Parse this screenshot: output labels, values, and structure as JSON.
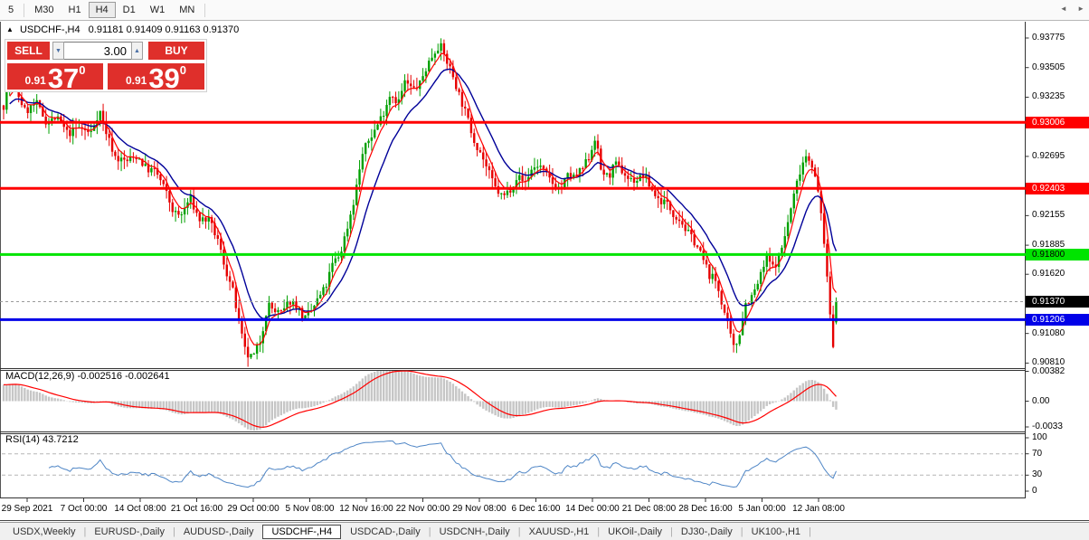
{
  "toolbar": {
    "items": [
      "5",
      "M30",
      "H1",
      "H4",
      "D1",
      "W1",
      "MN"
    ],
    "active": "H4"
  },
  "chart": {
    "title": {
      "marker": "▲",
      "symbol": "USDCHF-,H4",
      "ohlc": "0.91181 0.91409 0.91163 0.91370"
    },
    "trade": {
      "sell_label": "SELL",
      "buy_label": "BUY",
      "volume": "3.00",
      "volume_down_icon": "▼",
      "volume_up_icon": "▲",
      "sell_price": {
        "prefix": "0.91",
        "big": "37",
        "sup": "0"
      },
      "buy_price": {
        "prefix": "0.91",
        "big": "39",
        "sup": "0"
      }
    }
  },
  "price_scale": {
    "ticks": [
      0.93775,
      0.93505,
      0.93235,
      0.92965,
      0.92695,
      0.92155,
      0.91885,
      0.9162,
      0.9108,
      0.9081
    ]
  },
  "indicators": {
    "macd": {
      "header": "MACD(12,26,9) -0.002516 -0.002641",
      "scale": [
        {
          "v": 0.00382,
          "t": "0.00382"
        },
        {
          "v": 0,
          "t": "0.00"
        },
        {
          "v": -0.0033,
          "t": "-0.0033"
        }
      ]
    },
    "rsi": {
      "header": "RSI(14) 43.7212",
      "scale": [
        100,
        70,
        30,
        0
      ],
      "levels": [
        70,
        30
      ]
    }
  },
  "time_axis": {
    "labels": [
      "29 Sep 2021",
      "7 Oct 00:00",
      "14 Oct 08:00",
      "21 Oct 16:00",
      "29 Oct 00:00",
      "5 Nov 08:00",
      "12 Nov 16:00",
      "22 Nov 00:00",
      "29 Nov 08:00",
      "6 Dec 16:00",
      "14 Dec 00:00",
      "21 Dec 08:00",
      "28 Dec 16:00",
      "5 Jan 00:00",
      "12 Jan 08:00"
    ]
  },
  "tabs": {
    "items": [
      "USDX,Weekly",
      "EURUSD-,Daily",
      "AUDUSD-,Daily",
      "USDCHF-,H4",
      "USDCAD-,Daily",
      "USDCNH-,Daily",
      "XAUUSD-,H1",
      "UKOil-,Daily",
      "DJ30-,Daily",
      "UK100-,H1"
    ],
    "active_index": 3,
    "left_arrow": "◄",
    "right_arrow": "►"
  },
  "chart_data": {
    "type": "candlestick+indicators",
    "symbol": "USDCHF",
    "period": "H4",
    "last_ohlc": {
      "open": 0.91181,
      "high": 0.91409,
      "low": 0.91163,
      "close": 0.9137
    },
    "levels": [
      {
        "name": "resistance-upper",
        "price": 0.93006,
        "label": "0.93006",
        "line_color": "#ff0000",
        "chip_bg": "#ff0000",
        "chip_fg": "#ffffff",
        "width": 3
      },
      {
        "name": "resistance-lower",
        "price": 0.92403,
        "label": "0.92403",
        "line_color": "#ff0000",
        "chip_bg": "#ff0000",
        "chip_fg": "#ffffff",
        "width": 3
      },
      {
        "name": "pivot-green",
        "price": 0.918,
        "label": "0.91800",
        "line_color": "#00e400",
        "chip_bg": "#00e400",
        "chip_fg": "#000000",
        "width": 3
      },
      {
        "name": "current-price",
        "price": 0.9137,
        "label": "0.91370",
        "line_color": "#9a9a9a",
        "chip_bg": "#000000",
        "chip_fg": "#ffffff",
        "width": 1,
        "dashed": true
      },
      {
        "name": "support-blue",
        "price": 0.91206,
        "label": "0.91206",
        "line_color": "#0000e8",
        "chip_bg": "#0000e8",
        "chip_fg": "#ffffff",
        "width": 3
      }
    ],
    "colors": {
      "candle_up": "#00a000",
      "candle_down": "#e60000",
      "ma_fast": "#ff0000",
      "ma_slow": "#000099",
      "macd_hist": "#c6c6c6",
      "macd_signal": "#ff0000",
      "rsi_line": "#4f86c6",
      "rsi_levels": "#b5b5b5"
    },
    "price_path_anchors": [
      [
        4,
        0.9316
      ],
      [
        10,
        0.9338
      ],
      [
        18,
        0.933
      ],
      [
        28,
        0.931
      ],
      [
        40,
        0.9318
      ],
      [
        52,
        0.93
      ],
      [
        62,
        0.9305
      ],
      [
        75,
        0.929
      ],
      [
        88,
        0.9296
      ],
      [
        100,
        0.929
      ],
      [
        110,
        0.9312
      ],
      [
        118,
        0.929
      ],
      [
        128,
        0.9268
      ],
      [
        140,
        0.9265
      ],
      [
        152,
        0.927
      ],
      [
        162,
        0.9258
      ],
      [
        172,
        0.9256
      ],
      [
        182,
        0.924
      ],
      [
        192,
        0.9218
      ],
      [
        200,
        0.9215
      ],
      [
        210,
        0.9232
      ],
      [
        220,
        0.9212
      ],
      [
        230,
        0.9212
      ],
      [
        240,
        0.9195
      ],
      [
        250,
        0.9165
      ],
      [
        258,
        0.9145
      ],
      [
        266,
        0.911
      ],
      [
        272,
        0.9088
      ],
      [
        280,
        0.9086
      ],
      [
        288,
        0.9102
      ],
      [
        296,
        0.9135
      ],
      [
        304,
        0.9128
      ],
      [
        312,
        0.9126
      ],
      [
        320,
        0.9138
      ],
      [
        328,
        0.9134
      ],
      [
        336,
        0.912
      ],
      [
        344,
        0.9128
      ],
      [
        352,
        0.914
      ],
      [
        360,
        0.915
      ],
      [
        368,
        0.9172
      ],
      [
        376,
        0.918
      ],
      [
        384,
        0.9205
      ],
      [
        392,
        0.9232
      ],
      [
        400,
        0.927
      ],
      [
        408,
        0.9285
      ],
      [
        416,
        0.9296
      ],
      [
        424,
        0.931
      ],
      [
        432,
        0.9328
      ],
      [
        440,
        0.9318
      ],
      [
        448,
        0.9338
      ],
      [
        456,
        0.933
      ],
      [
        464,
        0.9335
      ],
      [
        472,
        0.9352
      ],
      [
        480,
        0.9365
      ],
      [
        486,
        0.9372
      ],
      [
        492,
        0.936
      ],
      [
        500,
        0.9345
      ],
      [
        508,
        0.9325
      ],
      [
        516,
        0.9306
      ],
      [
        524,
        0.9285
      ],
      [
        532,
        0.9272
      ],
      [
        540,
        0.9255
      ],
      [
        548,
        0.924
      ],
      [
        556,
        0.9232
      ],
      [
        564,
        0.924
      ],
      [
        572,
        0.9252
      ],
      [
        580,
        0.9245
      ],
      [
        588,
        0.9258
      ],
      [
        596,
        0.9262
      ],
      [
        604,
        0.9252
      ],
      [
        612,
        0.9244
      ],
      [
        620,
        0.924
      ],
      [
        628,
        0.9252
      ],
      [
        636,
        0.925
      ],
      [
        644,
        0.9258
      ],
      [
        652,
        0.927
      ],
      [
        658,
        0.9288
      ],
      [
        664,
        0.9258
      ],
      [
        672,
        0.925
      ],
      [
        680,
        0.9262
      ],
      [
        688,
        0.9256
      ],
      [
        696,
        0.9248
      ],
      [
        704,
        0.9248
      ],
      [
        712,
        0.9252
      ],
      [
        720,
        0.924
      ],
      [
        728,
        0.923
      ],
      [
        736,
        0.9228
      ],
      [
        744,
        0.9218
      ],
      [
        752,
        0.9212
      ],
      [
        760,
        0.92
      ],
      [
        768,
        0.9192
      ],
      [
        776,
        0.9178
      ],
      [
        784,
        0.9162
      ],
      [
        792,
        0.9155
      ],
      [
        800,
        0.913
      ],
      [
        806,
        0.911
      ],
      [
        812,
        0.9092
      ],
      [
        818,
        0.911
      ],
      [
        824,
        0.9135
      ],
      [
        832,
        0.9142
      ],
      [
        840,
        0.9158
      ],
      [
        848,
        0.9178
      ],
      [
        854,
        0.9168
      ],
      [
        862,
        0.9178
      ],
      [
        870,
        0.9205
      ],
      [
        878,
        0.9235
      ],
      [
        886,
        0.9262
      ],
      [
        892,
        0.9272
      ],
      [
        898,
        0.9262
      ],
      [
        904,
        0.9238
      ],
      [
        910,
        0.9205
      ],
      [
        914,
        0.916
      ],
      [
        918,
        0.9125
      ],
      [
        921,
        0.9095
      ],
      [
        924,
        0.91
      ],
      [
        927,
        0.9137
      ]
    ]
  }
}
